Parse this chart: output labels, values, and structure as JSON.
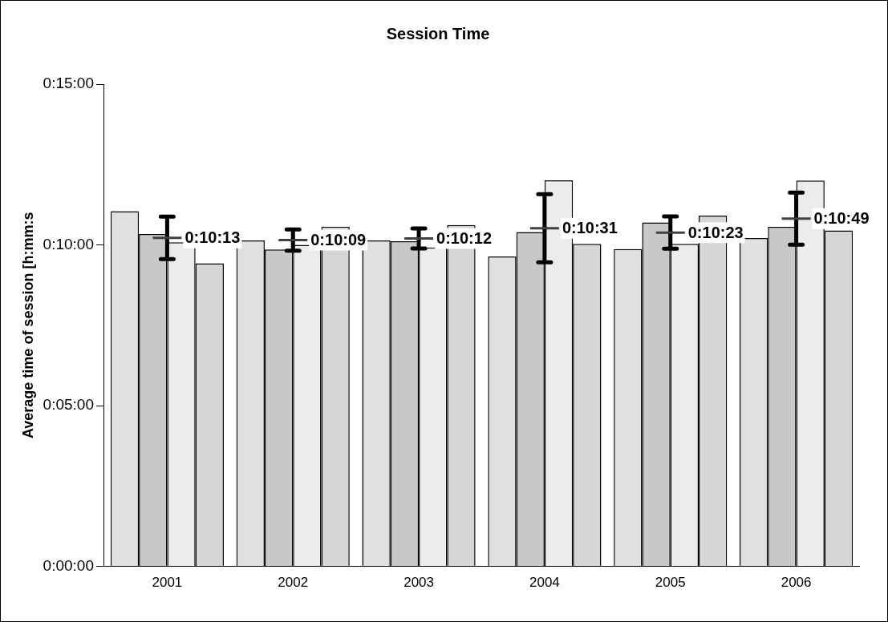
{
  "chart_data": {
    "type": "bar",
    "title": "Session Time",
    "ylabel": "Average time of session [h:mm:s",
    "categories": [
      "2001",
      "2002",
      "2003",
      "2004",
      "2005",
      "2006"
    ],
    "series": [
      {
        "color": "#e0e0e0",
        "values": [
          11.05,
          10.14,
          10.14,
          9.64,
          9.87,
          10.21
        ]
      },
      {
        "color": "#c8c8c8",
        "values": [
          10.34,
          9.86,
          10.11,
          10.4,
          10.7,
          10.56
        ]
      },
      {
        "color": "#ececec",
        "values": [
          10.08,
          10.0,
          9.92,
          12.01,
          10.03,
          12.0
        ]
      },
      {
        "color": "#d6d6d6",
        "values": [
          9.43,
          10.57,
          10.62,
          10.03,
          10.91,
          10.45
        ]
      },
      {
        "type": "scatter",
        "color": "#404040",
        "values": [
          10.217,
          10.15,
          10.2,
          10.517,
          10.383,
          10.817
        ],
        "errors": [
          0.66,
          0.33,
          0.31,
          1.06,
          0.5,
          0.81
        ],
        "value_labels": [
          "0:10:13",
          "0:10:09",
          "0:10:12",
          "0:10:31",
          "0:10:23",
          "0:10:49"
        ]
      }
    ],
    "ylim": [
      0,
      15
    ],
    "yticks": [
      {
        "value": 0,
        "label": "0:00:00"
      },
      {
        "value": 5,
        "label": "0:05:00"
      },
      {
        "value": 10,
        "label": "0:10:00"
      },
      {
        "value": 15,
        "label": "0:15:00"
      }
    ],
    "grid": false,
    "legend": false
  }
}
